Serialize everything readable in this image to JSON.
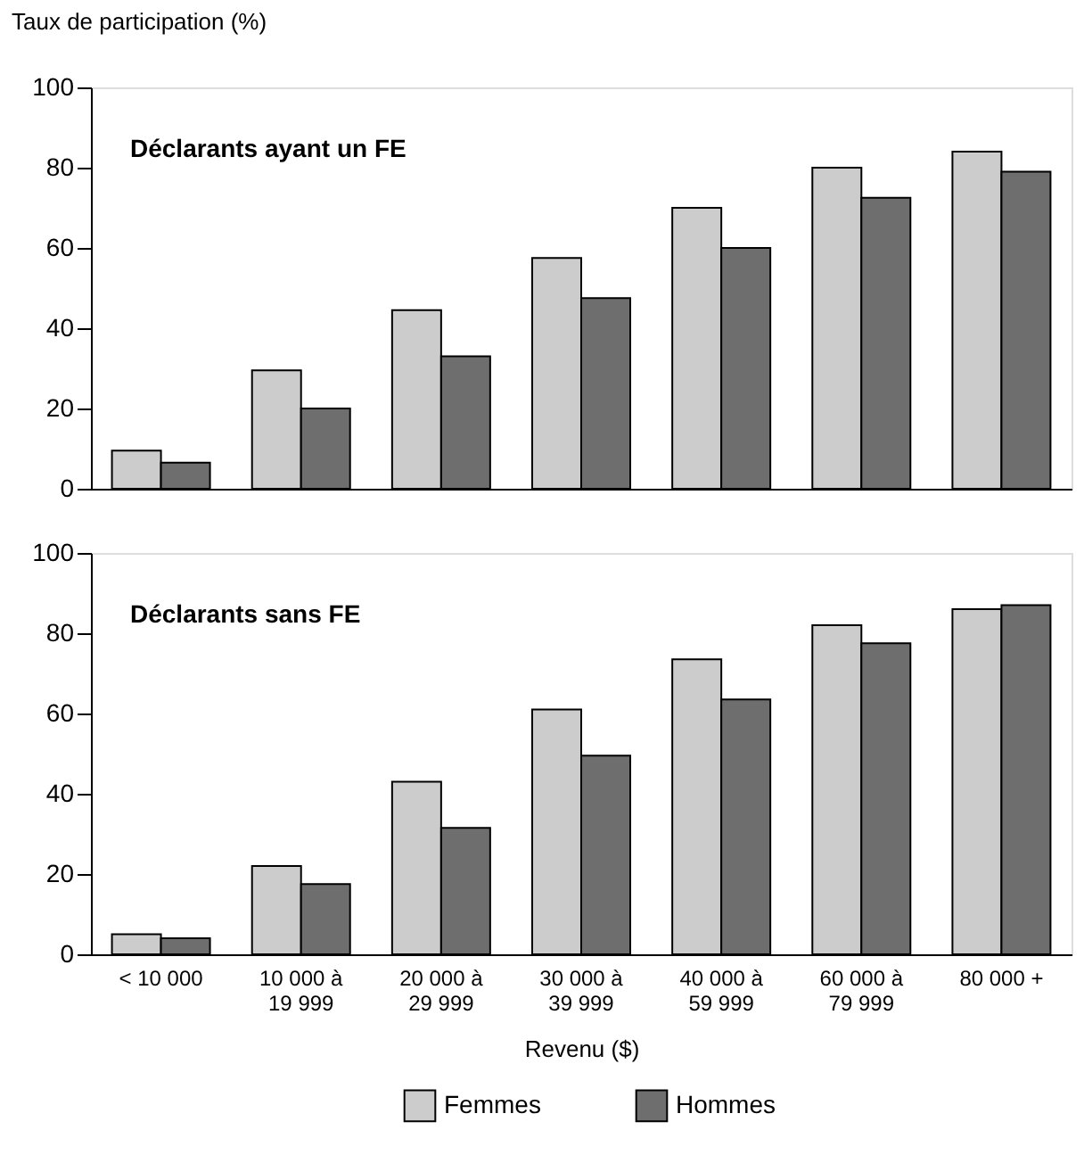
{
  "chart_data": [
    {
      "type": "bar",
      "title": "Déclarants ayant un FE",
      "ylabel": "Taux de participation (%)",
      "categories": [
        null,
        null,
        null,
        null,
        null,
        null,
        null
      ],
      "series": [
        {
          "color": "#cccccc",
          "values": [
            9.5,
            29.5,
            44.5,
            57.5,
            70,
            80,
            84
          ]
        },
        {
          "color": "#6e6e6e",
          "values": [
            6.5,
            20,
            33,
            47.5,
            60,
            72.5,
            79
          ]
        }
      ],
      "ylim": [
        0,
        100
      ],
      "yticks": [
        0,
        20,
        40,
        60,
        80,
        100
      ],
      "grid": false,
      "tick_labels": "y"
    },
    {
      "type": "bar",
      "title": "Déclarants sans FE",
      "xlabel": "Revenu ($)",
      "categories": [
        "< 10 000",
        "10 000 à\n19 999",
        "20 000 à\n29 999",
        "30 000 à\n39 999",
        "40 000 à\n59 999",
        "60 000 à\n79 999",
        "80 000 +"
      ],
      "series": [
        {
          "name": "Femmes",
          "color": "#cccccc",
          "values": [
            5,
            22,
            43,
            61,
            73.5,
            82,
            86
          ]
        },
        {
          "name": "Hommes",
          "color": "#6e6e6e",
          "values": [
            4,
            17.5,
            31.5,
            49.5,
            63.5,
            77.5,
            87
          ]
        }
      ],
      "ylim": [
        0,
        100
      ],
      "yticks": [
        0,
        20,
        40,
        60,
        80,
        100
      ],
      "grid": false,
      "legend": "bottom"
    }
  ]
}
